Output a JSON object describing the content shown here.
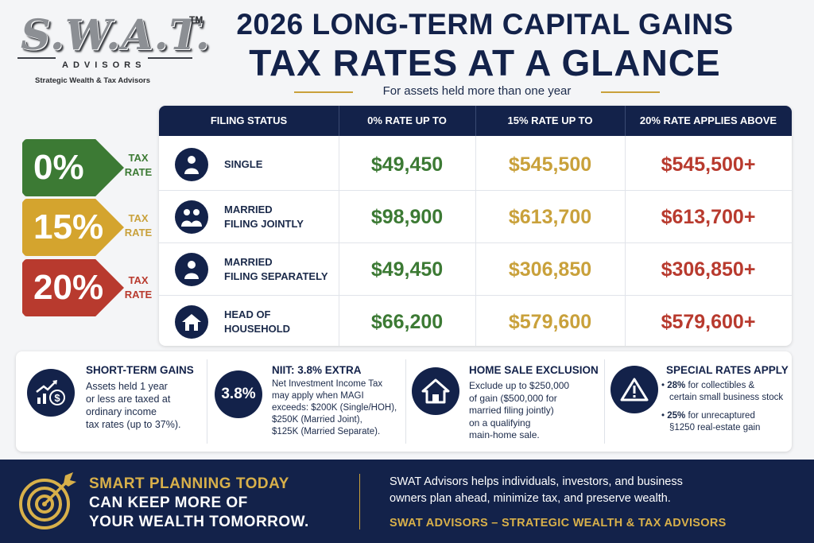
{
  "logo": {
    "mark": "S.W.A.T.",
    "tm": "TM",
    "sub": "ADVISORS",
    "tagline": "Strategic Wealth & Tax Advisors"
  },
  "header": {
    "title_line1": "2026 LONG-TERM CAPITAL GAINS",
    "title_line2": "TAX RATES AT A GLANCE",
    "subtitle": "For assets held more than one year"
  },
  "rate_tags": [
    {
      "rate": "0%",
      "word1": "TAX",
      "word2": "RATE",
      "color": "#3c7a34"
    },
    {
      "rate": "15%",
      "word1": "TAX",
      "word2": "RATE",
      "color": "#d4a42e"
    },
    {
      "rate": "20%",
      "word1": "TAX",
      "word2": "RATE",
      "color": "#b83a2e"
    }
  ],
  "table": {
    "headers": [
      "FILING STATUS",
      "0% RATE UP TO",
      "15% RATE UP TO",
      "20% RATE APPLIES ABOVE"
    ],
    "rows": [
      {
        "status_line1": "SINGLE",
        "status_line2": "",
        "icon": "person-icon",
        "zero": "$49,450",
        "fifteen": "$545,500",
        "twenty": "$545,500+"
      },
      {
        "status_line1": "MARRIED",
        "status_line2": "FILING JOINTLY",
        "icon": "couple-icon",
        "zero": "$98,900",
        "fifteen": "$613,700",
        "twenty": "$613,700+"
      },
      {
        "status_line1": "MARRIED",
        "status_line2": "FILING SEPARATELY",
        "icon": "person-icon",
        "zero": "$49,450",
        "fifteen": "$306,850",
        "twenty": "$306,850+"
      },
      {
        "status_line1": "HEAD OF",
        "status_line2": "HOUSEHOLD",
        "icon": "house-icon",
        "zero": "$66,200",
        "fifteen": "$579,600",
        "twenty": "$579,600+"
      }
    ],
    "colors": {
      "zero": "#3c7a34",
      "fifteen": "#c9a13b",
      "twenty": "#b83a2e"
    }
  },
  "cards": {
    "short_term": {
      "icon": "growth-money-icon",
      "title": "SHORT-TERM GAINS",
      "lines": [
        "Assets held 1 year",
        "or less are taxed at",
        "ordinary income",
        "tax rates (up to 37%)."
      ]
    },
    "niit": {
      "badge": "3.8%",
      "title": "NIIT: 3.8% EXTRA",
      "lines": [
        "Net Investment Income Tax",
        "may apply when MAGI",
        "exceeds: $200K (Single/HOH),",
        "$250K (Married Joint),",
        "$125K (Married Separate)."
      ]
    },
    "home_sale": {
      "icon": "house-icon",
      "title": "HOME SALE EXCLUSION",
      "lines": [
        "Exclude up to $250,000",
        "of gain ($500,000 for",
        "married filing jointly)",
        "on a qualifying",
        "main-home sale."
      ]
    },
    "special": {
      "icon": "warning-icon",
      "title": "SPECIAL RATES APPLY",
      "bullet1_bold": "28%",
      "bullet1_line1": " for collectibles &",
      "bullet1_line2": "certain small business stock",
      "bullet2_bold": "25%",
      "bullet2_line1": " for unrecaptured",
      "bullet2_line2": "§1250 real-estate gain"
    }
  },
  "footer": {
    "icon": "target-icon",
    "head_line1": "SMART PLANNING TODAY",
    "head_line2": "CAN KEEP MORE OF",
    "head_line3": "YOUR WEALTH TOMORROW.",
    "text_line1": "SWAT Advisors helps individuals, investors, and business",
    "text_line2": "owners plan ahead, minimize tax, and preserve wealth.",
    "brand": "SWAT ADVISORS – STRATEGIC WEALTH & TAX ADVISORS"
  }
}
